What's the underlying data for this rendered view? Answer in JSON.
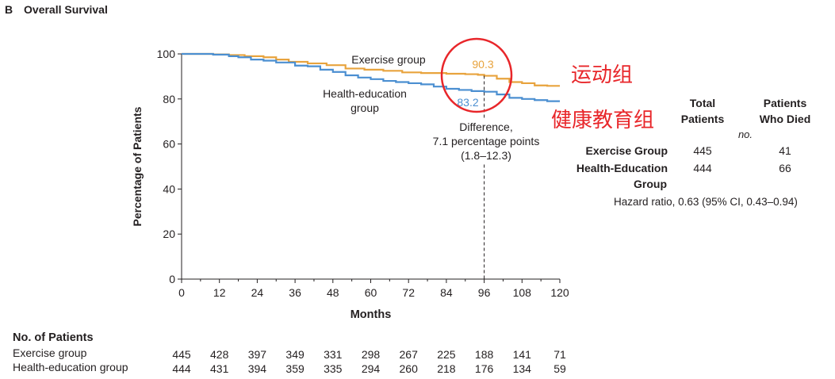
{
  "panel": {
    "letter": "B",
    "title": "Overall Survival"
  },
  "chart_data": {
    "type": "line",
    "title": "Overall Survival",
    "xlabel": "Months",
    "ylabel": "Percentage of Patients",
    "x_ticks": [
      0,
      12,
      24,
      36,
      48,
      60,
      72,
      84,
      96,
      108,
      120
    ],
    "y_ticks": [
      0,
      20,
      40,
      60,
      80,
      100
    ],
    "xlim": [
      0,
      120
    ],
    "ylim": [
      0,
      100
    ],
    "grid": false,
    "series": [
      {
        "name": "Exercise group",
        "color": "#e8a33d",
        "points": [
          [
            0,
            100
          ],
          [
            4,
            100
          ],
          [
            10,
            99.8
          ],
          [
            15,
            99.5
          ],
          [
            20,
            99
          ],
          [
            26,
            98.5
          ],
          [
            30,
            97.5
          ],
          [
            34,
            96.5
          ],
          [
            40,
            95.8
          ],
          [
            46,
            95
          ],
          [
            52,
            93.5
          ],
          [
            58,
            93
          ],
          [
            64,
            92.5
          ],
          [
            70,
            91.8
          ],
          [
            76,
            91.5
          ],
          [
            84,
            91.2
          ],
          [
            90,
            91
          ],
          [
            94,
            90.7
          ],
          [
            96,
            90.3
          ],
          [
            100,
            89
          ],
          [
            104,
            87.5
          ],
          [
            108,
            87
          ],
          [
            112,
            86
          ],
          [
            116,
            85.8
          ],
          [
            120,
            85.8
          ]
        ]
      },
      {
        "name": "Health-education group",
        "color": "#4b8fd1",
        "points": [
          [
            0,
            100
          ],
          [
            4,
            100
          ],
          [
            10,
            99.7
          ],
          [
            15,
            99
          ],
          [
            18,
            98.5
          ],
          [
            22,
            97.5
          ],
          [
            26,
            97
          ],
          [
            30,
            96.2
          ],
          [
            36,
            94.8
          ],
          [
            40,
            94.5
          ],
          [
            44,
            93
          ],
          [
            48,
            92
          ],
          [
            52,
            90.5
          ],
          [
            56,
            89.5
          ],
          [
            60,
            88.8
          ],
          [
            64,
            88
          ],
          [
            68,
            87.5
          ],
          [
            72,
            87
          ],
          [
            76,
            86.5
          ],
          [
            80,
            85.5
          ],
          [
            84,
            84.5
          ],
          [
            88,
            84
          ],
          [
            92,
            83.5
          ],
          [
            96,
            83.2
          ],
          [
            100,
            82
          ],
          [
            104,
            80.5
          ],
          [
            108,
            80
          ],
          [
            112,
            79.5
          ],
          [
            116,
            79
          ],
          [
            120,
            79
          ]
        ]
      }
    ],
    "annotations": {
      "exercise_label": "Exercise group",
      "health_label_line1": "Health-education",
      "health_label_line2": "group",
      "exercise_value": "90.3",
      "health_value": "83.2",
      "difference_line1": "Difference,",
      "difference_line2": "7.1 percentage points",
      "difference_line3": "(1.8–12.3)",
      "difference_x": 96,
      "circle_color": "#e8262a"
    },
    "chinese_labels": {
      "exercise": "运动组",
      "health": "健康教育组",
      "color": "#e8262a"
    },
    "summary_table": {
      "col1_header_line1": "Total",
      "col1_header_line2": "Patients",
      "col2_header_line1": "Patients",
      "col2_header_line2": "Who Died",
      "unit": "no.",
      "rows": [
        {
          "label_line1": "Exercise Group",
          "label_line2": "",
          "total": "445",
          "died": "41"
        },
        {
          "label_line1": "Health-Education",
          "label_line2": "Group",
          "total": "444",
          "died": "66"
        }
      ],
      "hazard_ratio": "Hazard ratio, 0.63 (95% CI, 0.43–0.94)"
    }
  },
  "at_risk": {
    "header": "No. of Patients",
    "rows": [
      {
        "label": "Exercise group",
        "values": [
          "445",
          "428",
          "397",
          "349",
          "331",
          "298",
          "267",
          "225",
          "188",
          "141",
          "71"
        ]
      },
      {
        "label": "Health-education group",
        "values": [
          "444",
          "431",
          "394",
          "359",
          "335",
          "294",
          "260",
          "218",
          "176",
          "134",
          "59"
        ]
      }
    ]
  }
}
